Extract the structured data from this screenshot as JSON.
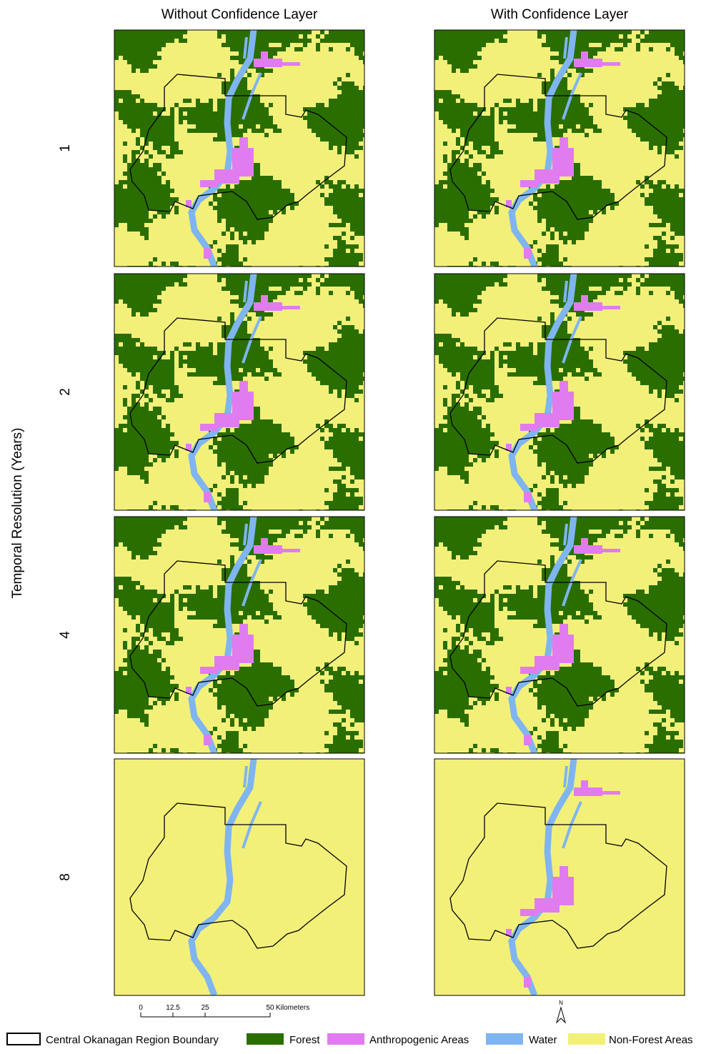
{
  "columns": [
    "Without Confidence Layer",
    "With Confidence Layer"
  ],
  "y_axis_label": "Temporal Resolution (Years)",
  "rows": [
    "1",
    "2",
    "4",
    "8"
  ],
  "scale_bar": {
    "ticks": [
      "0",
      "12.5",
      "25",
      "50"
    ],
    "unit": "Kilometers"
  },
  "north_arrow": "N",
  "legend": [
    "Central Okanagan Region Boundary",
    "Forest",
    "Anthropogenic Areas",
    "Water",
    "Non-Forest Areas"
  ]
}
